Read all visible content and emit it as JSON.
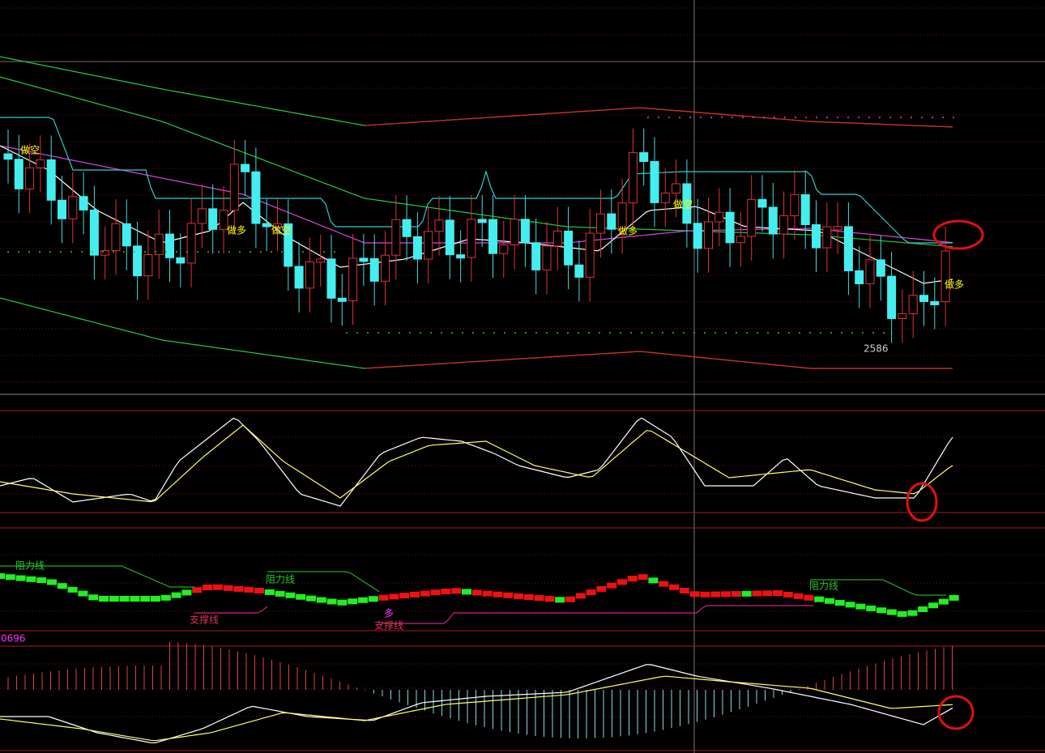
{
  "annotations": {
    "short_1": "做空",
    "short_2": "做空",
    "short_3": "做空",
    "long_1": "做多",
    "long_2": "做多",
    "long_3": "做多",
    "low_price": "2586",
    "resistance_1": "阻力线",
    "resistance_2": "阻力线",
    "resistance_3": "阻力线",
    "support_1": "支撑线",
    "support_2": "支撑线",
    "long_mark": "多",
    "indicator_value": "0696"
  }
}
